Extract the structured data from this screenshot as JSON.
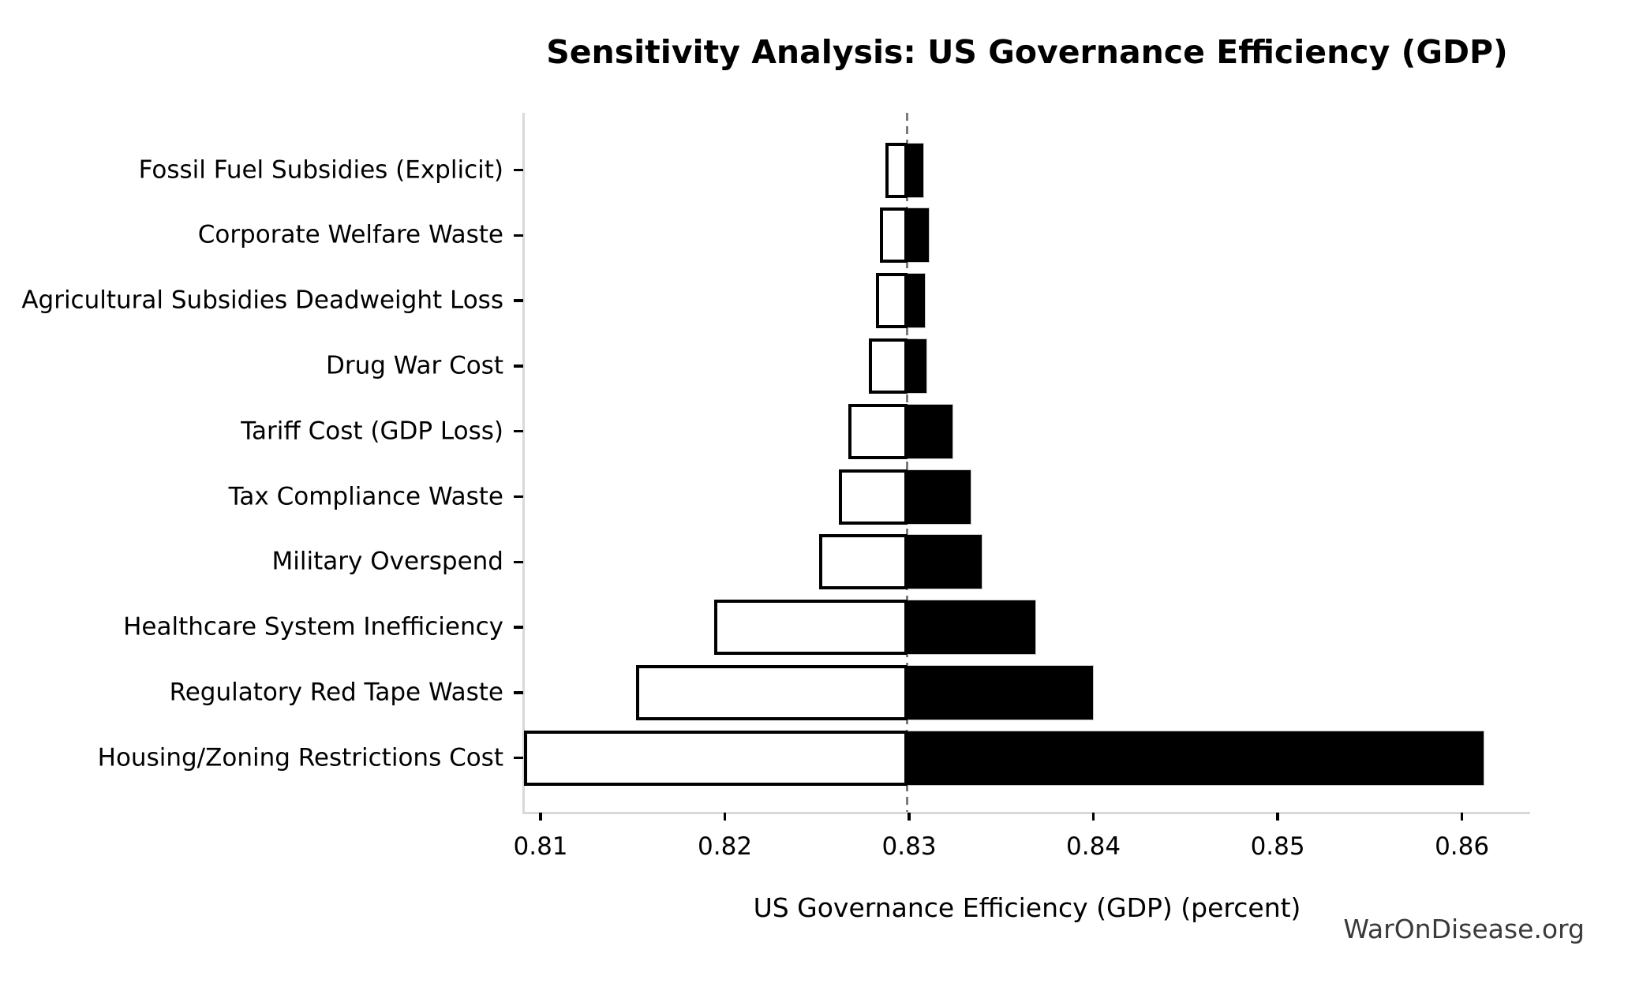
{
  "title": "Sensitivity Analysis: US Governance Efficiency (GDP)",
  "watermark": "WarOnDisease.org",
  "chart_data": {
    "type": "bar",
    "variant": "tornado-sensitivity",
    "title": "Sensitivity Analysis: US Governance Efficiency (GDP)",
    "xlabel": "US Governance Efficiency (GDP) (percent)",
    "ylabel": "",
    "baseline": 0.8299,
    "xlim": [
      0.8091,
      0.8637
    ],
    "x_ticks": [
      0.81,
      0.82,
      0.83,
      0.84,
      0.85,
      0.86
    ],
    "x_tick_labels": [
      "0.81",
      "0.82",
      "0.83",
      "0.84",
      "0.85",
      "0.86"
    ],
    "grid": false,
    "legend": "none",
    "categories": [
      "Fossil Fuel Subsidies (Explicit)",
      "Corporate Welfare Waste",
      "Agricultural Subsidies Deadweight Loss",
      "Drug War Cost",
      "Tariff Cost (GDP Loss)",
      "Tax Compliance Waste",
      "Military Overspend",
      "Healthcare System Inefficiency",
      "Regulatory Red Tape Waste",
      "Housing/Zoning Restrictions Cost"
    ],
    "series": [
      {
        "name": "low_case",
        "values": [
          0.8287,
          0.8284,
          0.8282,
          0.8278,
          0.8267,
          0.8262,
          0.8251,
          0.8194,
          0.8152,
          0.8091
        ]
      },
      {
        "name": "high_case",
        "values": [
          0.8308,
          0.8311,
          0.8309,
          0.831,
          0.8324,
          0.8334,
          0.834,
          0.8369,
          0.84,
          0.8612
        ]
      }
    ],
    "colors": {
      "low_bar_fill": "#ffffff",
      "low_bar_edge": "#000000",
      "high_bar_fill": "#000000",
      "high_bar_edge": "#c8c8c8",
      "baseline_line": "#7a7a7a",
      "spine": "#d9d9d9",
      "text": "#000000",
      "watermark_text": "#3a3a3a"
    }
  }
}
